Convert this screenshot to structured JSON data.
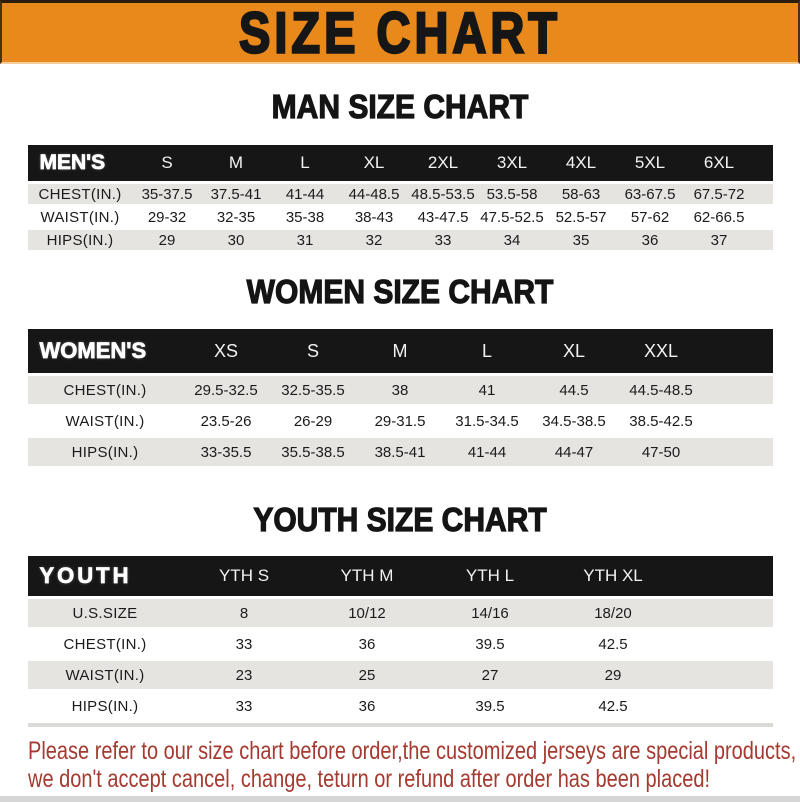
{
  "banner": {
    "title": "SIZE CHART",
    "bg_color": "#E9891B",
    "text_color": "#161616"
  },
  "sections": [
    {
      "heading": "MAN SIZE CHART"
    },
    {
      "heading": "WOMEN SIZE CHART"
    },
    {
      "heading": "YOUTH SIZE CHART"
    }
  ],
  "tables": {
    "men": {
      "header_label": "MEN'S",
      "columns": [
        "S",
        "M",
        "L",
        "XL",
        "2XL",
        "3XL",
        "4XL",
        "5XL",
        "6XL"
      ],
      "rows": [
        {
          "label": "CHEST(IN.)",
          "values": [
            "35-37.5",
            "37.5-41",
            "41-44",
            "44-48.5",
            "48.5-53.5",
            "53.5-58",
            "58-63",
            "63-67.5",
            "67.5-72"
          ]
        },
        {
          "label": "WAIST(IN.)",
          "values": [
            "29-32",
            "32-35",
            "35-38",
            "38-43",
            "43-47.5",
            "47.5-52.5",
            "52.5-57",
            "57-62",
            "62-66.5"
          ]
        },
        {
          "label": "HIPS(IN.)",
          "values": [
            "29",
            "30",
            "31",
            "32",
            "33",
            "34",
            "35",
            "36",
            "37"
          ]
        }
      ]
    },
    "women": {
      "header_label": "WOMEN'S",
      "columns": [
        "XS",
        "S",
        "M",
        "L",
        "XL",
        "XXL"
      ],
      "rows": [
        {
          "label": "CHEST(IN.)",
          "values": [
            "29.5-32.5",
            "32.5-35.5",
            "38",
            "41",
            "44.5",
            "44.5-48.5"
          ]
        },
        {
          "label": "WAIST(IN.)",
          "values": [
            "23.5-26",
            "26-29",
            "29-31.5",
            "31.5-34.5",
            "34.5-38.5",
            "38.5-42.5"
          ]
        },
        {
          "label": "HIPS(IN.)",
          "values": [
            "33-35.5",
            "35.5-38.5",
            "38.5-41",
            "41-44",
            "44-47",
            "47-50"
          ]
        }
      ]
    },
    "youth": {
      "header_label": "YOUTH",
      "columns": [
        "YTH S",
        "YTH M",
        "YTH L",
        "YTH XL"
      ],
      "rows": [
        {
          "label": "U.S.SIZE",
          "values": [
            "8",
            "10/12",
            "14/16",
            "18/20"
          ]
        },
        {
          "label": "CHEST(IN.)",
          "values": [
            "33",
            "36",
            "39.5",
            "42.5"
          ]
        },
        {
          "label": "WAIST(IN.)",
          "values": [
            "23",
            "25",
            "27",
            "29"
          ]
        },
        {
          "label": "HIPS(IN.)",
          "values": [
            "33",
            "36",
            "39.5",
            "42.5"
          ]
        }
      ]
    }
  },
  "note": {
    "line1": "Please refer to our size chart before order,the customized jerseys are special products,",
    "line2": "we don't accept cancel, change, teturn or refund after order has been placed!",
    "color": "#A43A30"
  },
  "row_colors": {
    "gray": "#E6E4E1",
    "white": "#FFFFFF",
    "header": "#161616"
  }
}
